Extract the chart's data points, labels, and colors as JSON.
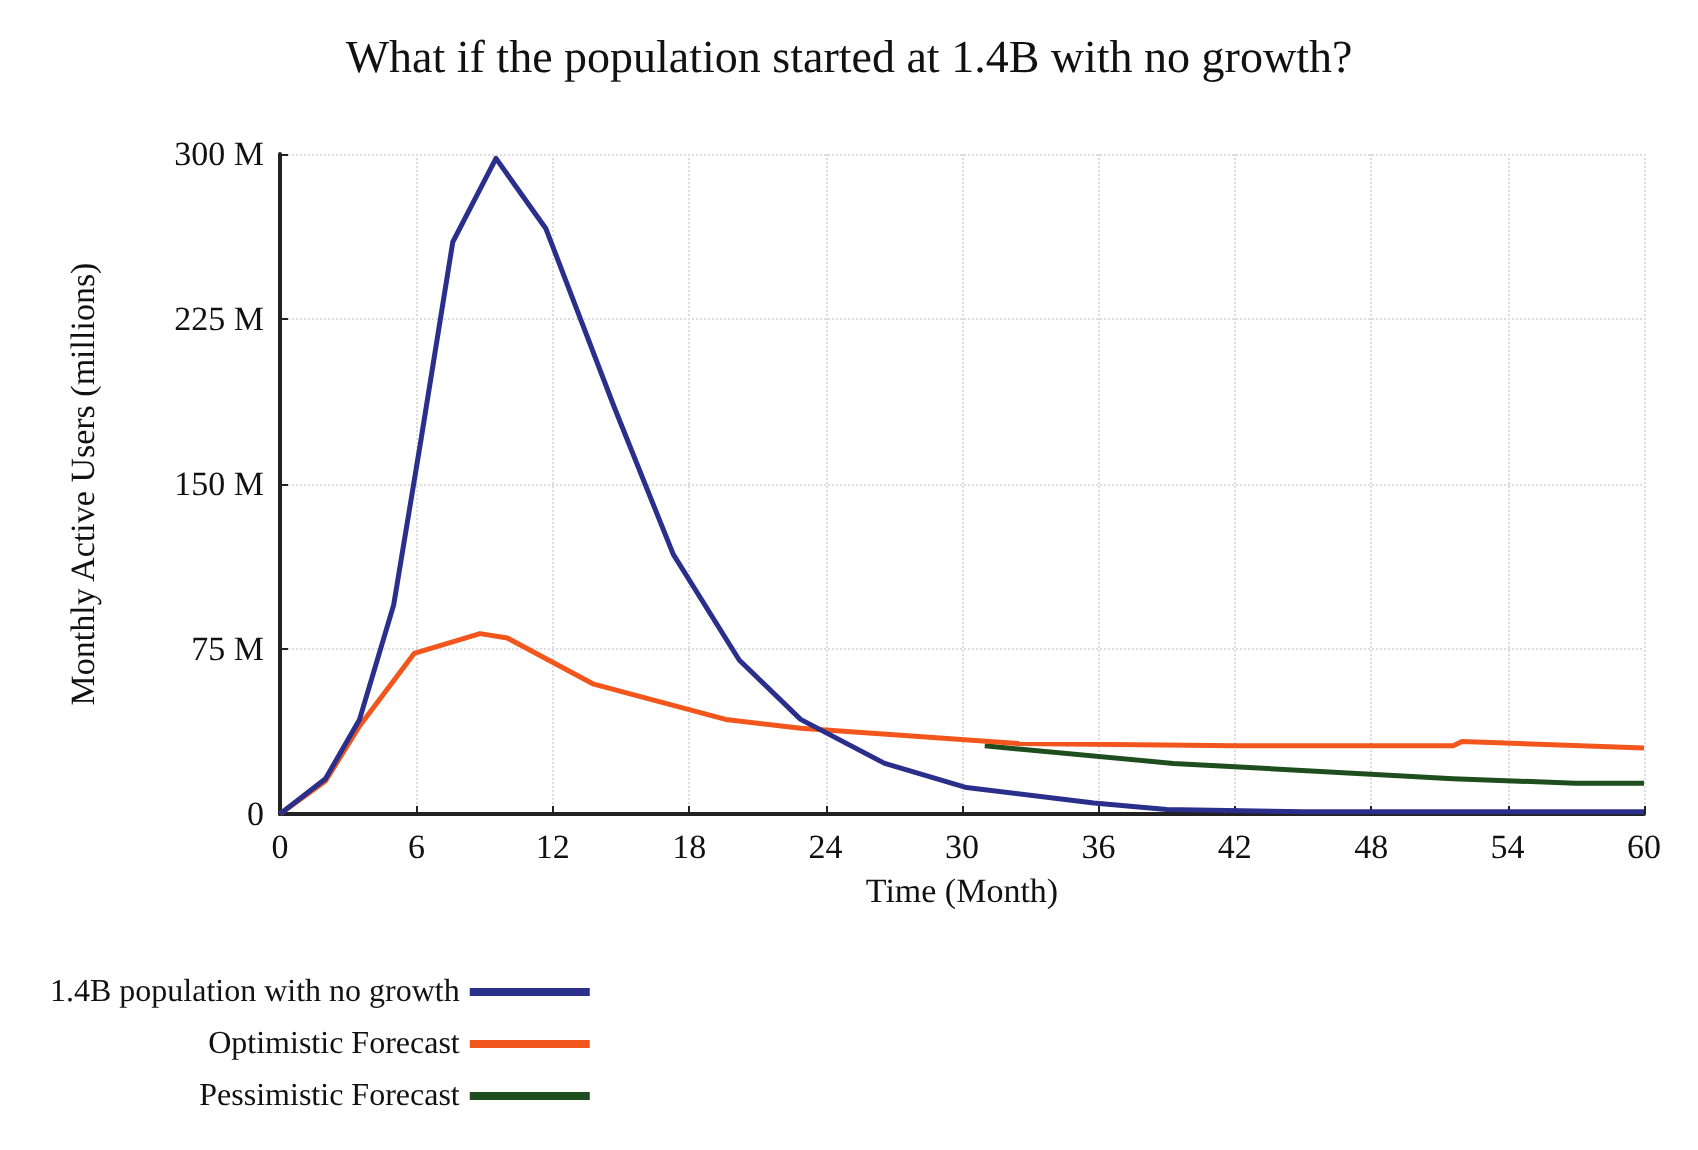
{
  "chart_data": {
    "type": "line",
    "title": "What if the population started at 1.4B with no growth?",
    "xlabel": "Time (Month)",
    "ylabel": "Monthly Active Users (millions)",
    "xlim": [
      0,
      60
    ],
    "xticks": [
      0,
      6,
      12,
      18,
      24,
      30,
      36,
      42,
      48,
      54,
      60
    ],
    "ylim": [
      0,
      300
    ],
    "yticks": [
      0,
      {
        "value": 75,
        "label": "75 M"
      },
      {
        "value": 150,
        "label": "150 M"
      },
      {
        "value": 225,
        "label": "225 M"
      },
      {
        "value": 300,
        "label": "300 M"
      }
    ],
    "grid": true,
    "legend": "bottom",
    "marker": "none",
    "line_style": "solid",
    "series": [
      {
        "name": "1.4B population with no growth",
        "color": "#2b2f8c",
        "x": [
          0,
          2,
          3.5,
          5,
          6.2,
          7.6,
          9.5,
          11.7,
          14.7,
          17.3,
          20.2,
          22.9,
          26.6,
          30.2,
          35.8,
          39,
          45,
          60
        ],
        "values": [
          0,
          16,
          43,
          95,
          170,
          260,
          298,
          266,
          185,
          118,
          70,
          43,
          23,
          12,
          5,
          2,
          1,
          1
        ]
      },
      {
        "name": "Optimistic Forecast",
        "color": "#f2561d",
        "x": [
          0,
          2,
          3.5,
          5.9,
          8.8,
          10,
          13.8,
          19.6,
          22.9,
          27,
          32.5,
          42,
          51.6,
          52,
          60
        ],
        "values": [
          0,
          15,
          40,
          73,
          82,
          80,
          59,
          43,
          39,
          36,
          32,
          31,
          31,
          33,
          30
        ]
      },
      {
        "name": "Pessimistic Forecast",
        "color": "#1e4d1e",
        "x": [
          31,
          39.3,
          51.6,
          57,
          60
        ],
        "values": [
          31,
          23,
          16,
          14,
          14
        ]
      }
    ]
  }
}
